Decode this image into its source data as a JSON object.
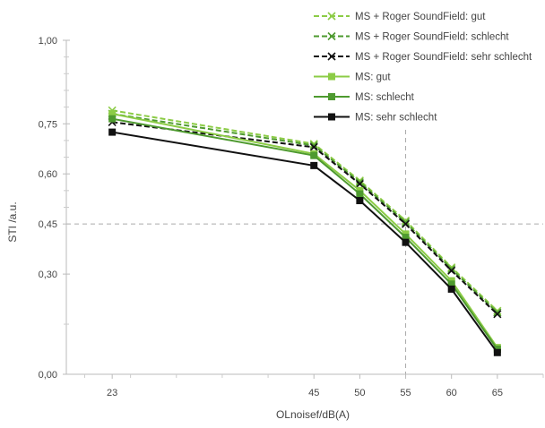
{
  "chart_data": {
    "type": "line",
    "xlabel": "OLnoisef/dB(A)",
    "ylabel": "STI /a.u.",
    "x": [
      23,
      45,
      50,
      55,
      60,
      65
    ],
    "xlim": [
      18,
      70
    ],
    "ylim": [
      0,
      1
    ],
    "y_ticks": [
      {
        "value": 0,
        "label": "0,00"
      },
      {
        "value": 0.3,
        "label": "0,30"
      },
      {
        "value": 0.45,
        "label": "0,45"
      },
      {
        "value": 0.6,
        "label": "0,60"
      },
      {
        "value": 0.75,
        "label": "0,75"
      },
      {
        "value": 1,
        "label": "1,00"
      }
    ],
    "y_minor_ticks": [
      0.15,
      0.5,
      0.55,
      0.65,
      0.7,
      0.8,
      0.85,
      0.9,
      0.95
    ],
    "x_ticks": [
      {
        "value": 23,
        "label": "23"
      },
      {
        "value": 45,
        "label": "45"
      },
      {
        "value": 50,
        "label": "50"
      },
      {
        "value": 55,
        "label": "55"
      },
      {
        "value": 60,
        "label": "60"
      },
      {
        "value": 65,
        "label": "65"
      }
    ],
    "x_minor_ticks": [
      20,
      25,
      30,
      35,
      40,
      70
    ],
    "reference_lines": [
      {
        "axis": "y",
        "value": 0.45,
        "style": "dashed",
        "color": "#aaaaaa"
      },
      {
        "axis": "x",
        "value": 55,
        "style": "dashed",
        "color": "#aaaaaa"
      }
    ],
    "legend": {
      "position": "top-right"
    },
    "series": [
      {
        "name": "MS + Roger SoundField: gut",
        "color": "#8ccc46",
        "dash": true,
        "marker": "x",
        "values": [
          0.79,
          0.69,
          0.58,
          0.46,
          0.32,
          0.19
        ]
      },
      {
        "name": "MS + Roger SoundField: schlecht",
        "color": "#4e9a2f",
        "dash": true,
        "marker": "x",
        "values": [
          0.78,
          0.685,
          0.575,
          0.455,
          0.315,
          0.185
        ]
      },
      {
        "name": "MS + Roger SoundField: sehr schlecht",
        "color": "#111111",
        "dash": true,
        "marker": "x",
        "values": [
          0.755,
          0.68,
          0.57,
          0.45,
          0.31,
          0.18
        ]
      },
      {
        "name": "MS: gut",
        "color": "#8ccc46",
        "dash": false,
        "marker": "square",
        "values": [
          0.78,
          0.66,
          0.55,
          0.42,
          0.28,
          0.08
        ]
      },
      {
        "name": "MS: schlecht",
        "color": "#4e9a2f",
        "dash": false,
        "marker": "square",
        "values": [
          0.765,
          0.655,
          0.54,
          0.41,
          0.27,
          0.075
        ]
      },
      {
        "name": "MS: sehr schlecht",
        "color": "#111111",
        "dash": false,
        "marker": "square",
        "values": [
          0.725,
          0.625,
          0.52,
          0.395,
          0.255,
          0.065
        ]
      }
    ]
  }
}
